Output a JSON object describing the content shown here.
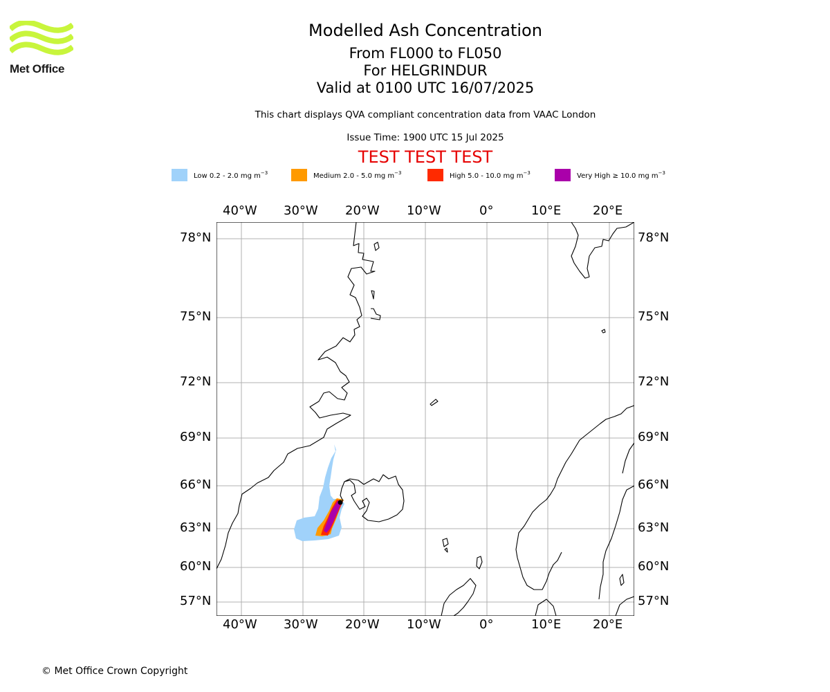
{
  "logo": {
    "text": "Met Office",
    "color": "#c8f53c"
  },
  "title": {
    "line1": "Modelled Ash Concentration",
    "line2": "From FL000 to FL050",
    "line3": "For HELGRINDUR",
    "line4": "Valid at 0100 UTC 16/07/2025"
  },
  "subtitle": "This chart displays QVA compliant concentration data from VAAC London",
  "issue_time": "Issue Time: 1900 UTC 15 Jul 2025",
  "test_banner": "TEST TEST TEST",
  "legend": [
    {
      "label": "Low 0.2 - 2.0 mg m",
      "color": "#a0d2fa"
    },
    {
      "label": "Medium 2.0 - 5.0 mg m",
      "color": "#ff9a00"
    },
    {
      "label": "High 5.0 - 10.0 mg m",
      "color": "#ff2a00"
    },
    {
      "label": "Very High  ≥  10.0 mg m",
      "color": "#aa00aa"
    }
  ],
  "legend_unit_exp": "−3",
  "map": {
    "lon_ticks": [
      "40°W",
      "30°W",
      "20°W",
      "10°W",
      "0°",
      "10°E",
      "20°E"
    ],
    "lat_ticks": [
      "78°N",
      "75°N",
      "72°N",
      "69°N",
      "66°N",
      "63°N",
      "60°N",
      "57°N"
    ],
    "volcano": "HELGRINDUR",
    "grid": true
  },
  "copyright": "© Met Office Crown Copyright"
}
